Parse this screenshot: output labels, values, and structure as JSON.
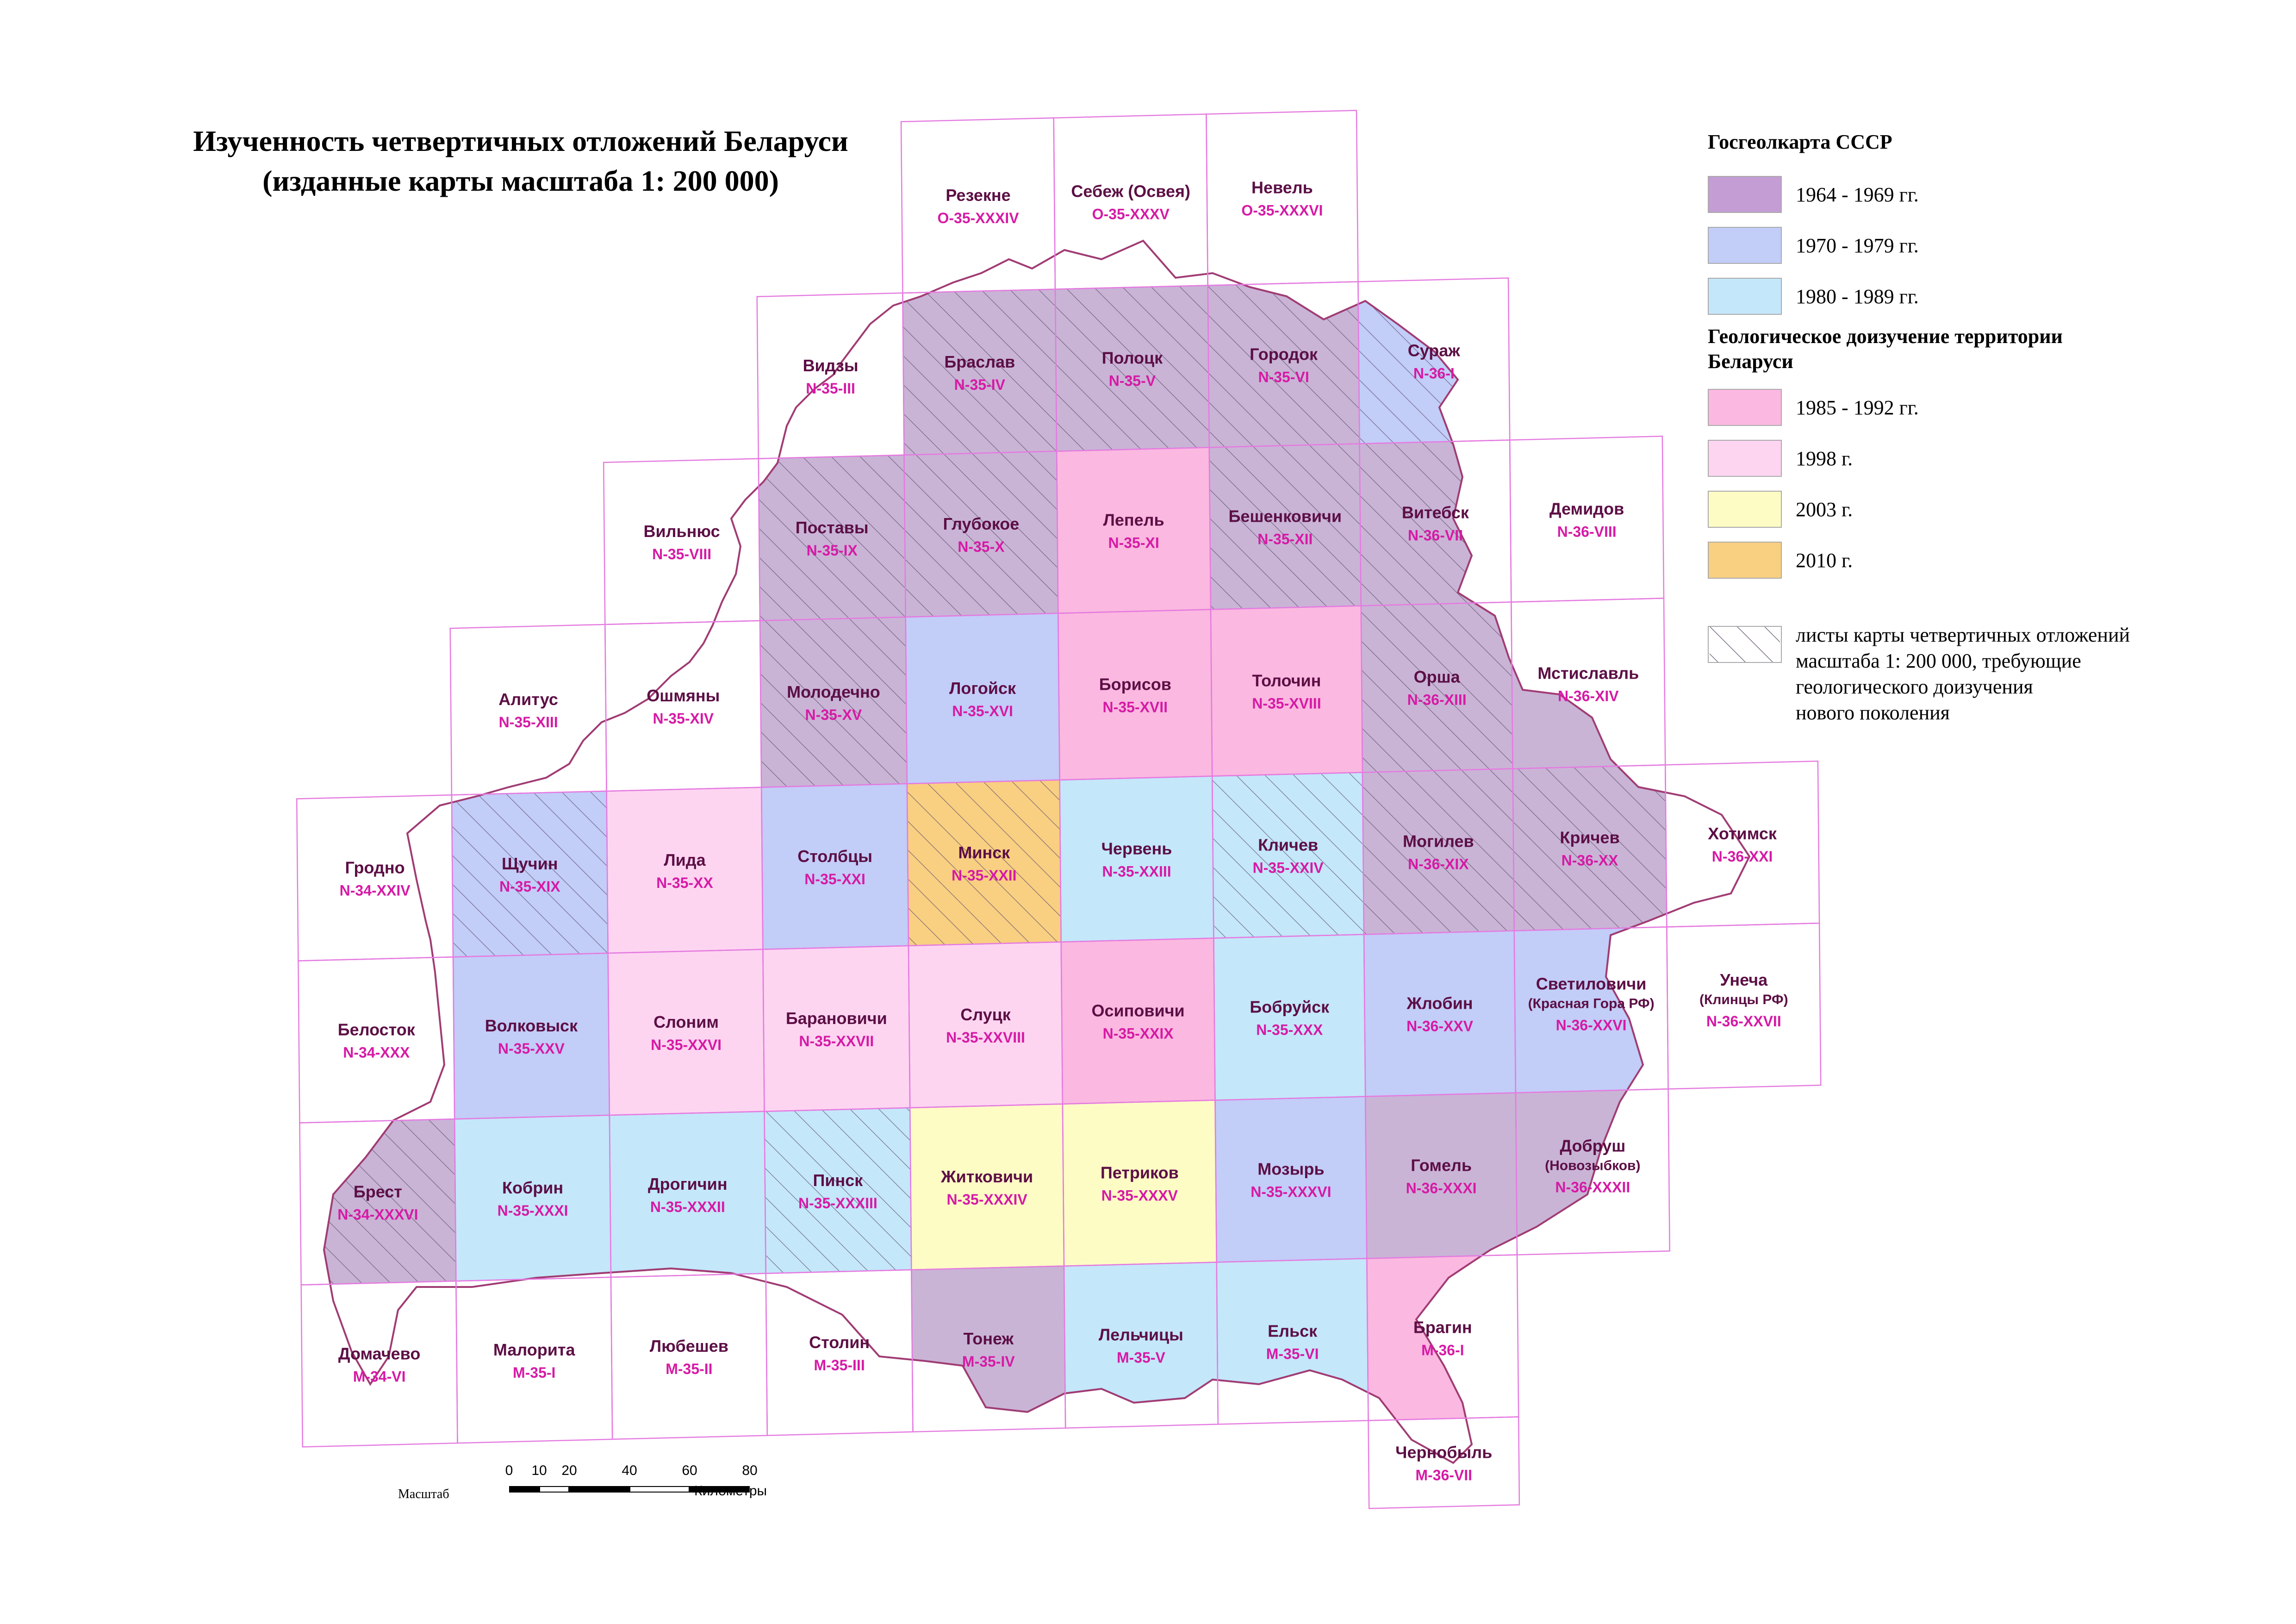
{
  "title": {
    "line1": "Изученность четвертичных отложений Беларуси",
    "line2": "(изданные карты масштаба 1: 200 000)"
  },
  "legend": {
    "group1_title": "Госгеолкарта СССР",
    "group1_items": [
      {
        "label": "1964 - 1969 гг.",
        "color": "#c49dd4"
      },
      {
        "label": "1970 - 1979 гг.",
        "color": "#c2cdf8"
      },
      {
        "label": "1980 - 1989 гг.",
        "color": "#c4e7fa"
      }
    ],
    "group2_title_l1": "Геологическое доизучение территории",
    "group2_title_l2": "Беларуси",
    "group2_items": [
      {
        "label": "1985 - 1992 гг.",
        "color": "#fbb8e0"
      },
      {
        "label": "1998 г.",
        "color": "#fdd5f1"
      },
      {
        "label": "2003 г.",
        "color": "#fdfcc5"
      },
      {
        "label": "2010 г.",
        "color": "#f9cf82"
      }
    ],
    "hatch_label_l1": "листы карты четвертичных отложений",
    "hatch_label_l2": "масштаба 1: 200 000, требующие",
    "hatch_label_l3": "геологического доизучения",
    "hatch_label_l4": "нового поколения"
  },
  "colors": {
    "p1964": "#c9b4d6",
    "p1970": "#c2cdf8",
    "p1980": "#c4e7fa",
    "p1985": "#fbb8e0",
    "p1998": "#fdd5f1",
    "p2003": "#fdfcc5",
    "p2010": "#f9cf82",
    "grid": "#e57be0",
    "name_text": "#5c0f45",
    "code_text": "#d61aa5"
  },
  "sheets": [
    {
      "name": "Резекне",
      "code": "O-35-XXXIV",
      "row": 0,
      "col": 4,
      "fill": "none",
      "hatch": false
    },
    {
      "name": "Себеж (Освея)",
      "code": "O-35-XXXV",
      "row": 0,
      "col": 5,
      "fill": "none",
      "hatch": false
    },
    {
      "name": "Невель",
      "code": "O-35-XXXVI",
      "row": 0,
      "col": 6,
      "fill": "none",
      "hatch": false
    },
    {
      "name": "Видзы",
      "code": "N-35-III",
      "row": 1,
      "col": 3,
      "fill": "none",
      "hatch": false
    },
    {
      "name": "Браслав",
      "code": "N-35-IV",
      "row": 1,
      "col": 4,
      "fill": "p1964",
      "hatch": true
    },
    {
      "name": "Полоцк",
      "code": "N-35-V",
      "row": 1,
      "col": 5,
      "fill": "p1964",
      "hatch": true
    },
    {
      "name": "Городок",
      "code": "N-35-VI",
      "row": 1,
      "col": 6,
      "fill": "p1964",
      "hatch": true
    },
    {
      "name": "Сураж",
      "code": "N-36-I",
      "row": 1,
      "col": 7,
      "fill": "p1970",
      "hatch": true
    },
    {
      "name": "Вильнюс",
      "code": "N-35-VIII",
      "row": 2,
      "col": 2,
      "fill": "none",
      "hatch": false
    },
    {
      "name": "Поставы",
      "code": "N-35-IX",
      "row": 2,
      "col": 3,
      "fill": "p1964",
      "hatch": true
    },
    {
      "name": "Глубокое",
      "code": "N-35-X",
      "row": 2,
      "col": 4,
      "fill": "p1964",
      "hatch": true
    },
    {
      "name": "Лепель",
      "code": "N-35-XI",
      "row": 2,
      "col": 5,
      "fill": "p1985",
      "hatch": false
    },
    {
      "name": "Бешенковичи",
      "code": "N-35-XII",
      "row": 2,
      "col": 6,
      "fill": "p1964",
      "hatch": true
    },
    {
      "name": "Витебск",
      "code": "N-36-VII",
      "row": 2,
      "col": 7,
      "fill": "p1964",
      "hatch": true
    },
    {
      "name": "Демидов",
      "code": "N-36-VIII",
      "row": 2,
      "col": 8,
      "fill": "none",
      "hatch": false
    },
    {
      "name": "Алитус",
      "code": "N-35-XIII",
      "row": 3,
      "col": 1,
      "fill": "none",
      "hatch": false
    },
    {
      "name": "Ошмяны",
      "code": "N-35-XIV",
      "row": 3,
      "col": 2,
      "fill": "none",
      "hatch": false
    },
    {
      "name": "Молодечно",
      "code": "N-35-XV",
      "row": 3,
      "col": 3,
      "fill": "p1964",
      "hatch": true
    },
    {
      "name": "Логойск",
      "code": "N-35-XVI",
      "row": 3,
      "col": 4,
      "fill": "p1970",
      "hatch": false
    },
    {
      "name": "Борисов",
      "code": "N-35-XVII",
      "row": 3,
      "col": 5,
      "fill": "p1985",
      "hatch": false
    },
    {
      "name": "Толочин",
      "code": "N-35-XVIII",
      "row": 3,
      "col": 6,
      "fill": "p1985",
      "hatch": false
    },
    {
      "name": "Орша",
      "code": "N-36-XIII",
      "row": 3,
      "col": 7,
      "fill": "p1964",
      "hatch": true
    },
    {
      "name": "Мстиславль",
      "code": "N-36-XIV",
      "row": 3,
      "col": 8,
      "fill": "p1964",
      "hatch": false
    },
    {
      "name": "Гродно",
      "code": "N-34-XXIV",
      "row": 4,
      "col": 0,
      "fill": "none",
      "hatch": false
    },
    {
      "name": "Щучин",
      "code": "N-35-XIX",
      "row": 4,
      "col": 1,
      "fill": "p1970",
      "hatch": true
    },
    {
      "name": "Лида",
      "code": "N-35-XX",
      "row": 4,
      "col": 2,
      "fill": "p1998",
      "hatch": false
    },
    {
      "name": "Столбцы",
      "code": "N-35-XXI",
      "row": 4,
      "col": 3,
      "fill": "p1970",
      "hatch": false
    },
    {
      "name": "Минск",
      "code": "N-35-XXII",
      "row": 4,
      "col": 4,
      "fill": "p2010",
      "hatch": true
    },
    {
      "name": "Червень",
      "code": "N-35-XXIII",
      "row": 4,
      "col": 5,
      "fill": "p1980",
      "hatch": false
    },
    {
      "name": "Кличев",
      "code": "N-35-XXIV",
      "row": 4,
      "col": 6,
      "fill": "p1980",
      "hatch": true
    },
    {
      "name": "Могилев",
      "code": "N-36-XIX",
      "row": 4,
      "col": 7,
      "fill": "p1964",
      "hatch": true
    },
    {
      "name": "Кричев",
      "code": "N-36-XX",
      "row": 4,
      "col": 8,
      "fill": "p1964",
      "hatch": true
    },
    {
      "name": "Хотимск",
      "code": "N-36-XXI",
      "row": 4,
      "col": 9,
      "fill": "none",
      "hatch": false
    },
    {
      "name": "Белосток",
      "code": "N-34-XXX",
      "row": 5,
      "col": 0,
      "fill": "none",
      "hatch": false
    },
    {
      "name": "Волковыск",
      "code": "N-35-XXV",
      "row": 5,
      "col": 1,
      "fill": "p1970",
      "hatch": false
    },
    {
      "name": "Слоним",
      "code": "N-35-XXVI",
      "row": 5,
      "col": 2,
      "fill": "p1998",
      "hatch": false
    },
    {
      "name": "Барановичи",
      "code": "N-35-XXVII",
      "row": 5,
      "col": 3,
      "fill": "p1998",
      "hatch": false
    },
    {
      "name": "Слуцк",
      "code": "N-35-XXVIII",
      "row": 5,
      "col": 4,
      "fill": "p1998",
      "hatch": false
    },
    {
      "name": "Осиповичи",
      "code": "N-35-XXIX",
      "row": 5,
      "col": 5,
      "fill": "p1985",
      "hatch": false
    },
    {
      "name": "Бобруйск",
      "code": "N-35-XXX",
      "row": 5,
      "col": 6,
      "fill": "p1980",
      "hatch": false
    },
    {
      "name": "Жлобин",
      "code": "N-36-XXV",
      "row": 5,
      "col": 7,
      "fill": "p1970",
      "hatch": false
    },
    {
      "name": "Светиловичи",
      "name2": "(Красная Гора РФ)",
      "code": "N-36-XXVI",
      "row": 5,
      "col": 8,
      "fill": "p1970",
      "hatch": false
    },
    {
      "name": "Унеча",
      "name2": "(Клинцы РФ)",
      "code": "N-36-XXVII",
      "row": 5,
      "col": 9,
      "fill": "none",
      "hatch": false
    },
    {
      "name": "Брест",
      "code": "N-34-XXXVI",
      "row": 6,
      "col": 0,
      "fill": "p1964",
      "hatch": true
    },
    {
      "name": "Кобрин",
      "code": "N-35-XXXI",
      "row": 6,
      "col": 1,
      "fill": "p1980",
      "hatch": false
    },
    {
      "name": "Дрогичин",
      "code": "N-35-XXXII",
      "row": 6,
      "col": 2,
      "fill": "p1980",
      "hatch": false
    },
    {
      "name": "Пинск",
      "code": "N-35-XXXIII",
      "row": 6,
      "col": 3,
      "fill": "p1980",
      "hatch": true
    },
    {
      "name": "Житковичи",
      "code": "N-35-XXXIV",
      "row": 6,
      "col": 4,
      "fill": "p2003",
      "hatch": false
    },
    {
      "name": "Петриков",
      "code": "N-35-XXXV",
      "row": 6,
      "col": 5,
      "fill": "p2003",
      "hatch": false
    },
    {
      "name": "Мозырь",
      "code": "N-35-XXXVI",
      "row": 6,
      "col": 6,
      "fill": "p1970",
      "hatch": false
    },
    {
      "name": "Гомель",
      "code": "N-36-XXXI",
      "row": 6,
      "col": 7,
      "fill": "p1964",
      "hatch": false
    },
    {
      "name": "Добруш",
      "name2": "(Новозыбков)",
      "code": "N-36-XXXII",
      "row": 6,
      "col": 8,
      "fill": "p1964",
      "hatch": false
    },
    {
      "name": "Домачево",
      "code": "M-34-VI",
      "row": 7,
      "col": 0,
      "fill": "none",
      "hatch": false
    },
    {
      "name": "Малорита",
      "code": "M-35-I",
      "row": 7,
      "col": 1,
      "fill": "none",
      "hatch": false
    },
    {
      "name": "Любешев",
      "code": "M-35-II",
      "row": 7,
      "col": 2,
      "fill": "none",
      "hatch": false
    },
    {
      "name": "Столин",
      "code": "M-35-III",
      "row": 7,
      "col": 3,
      "fill": "none",
      "hatch": false
    },
    {
      "name": "Тонеж",
      "code": "M-35-IV",
      "row": 7,
      "col": 4,
      "fill": "p1964",
      "hatch": false
    },
    {
      "name": "Лельчицы",
      "code": "M-35-V",
      "row": 7,
      "col": 5,
      "fill": "p1980",
      "hatch": false
    },
    {
      "name": "Ельск",
      "code": "M-35-VI",
      "row": 7,
      "col": 6,
      "fill": "p1980",
      "hatch": false
    },
    {
      "name": "Брагин",
      "code": "M-36-I",
      "row": 7,
      "col": 7,
      "fill": "p1985",
      "hatch": false
    },
    {
      "name": "Чернобыль",
      "code": "M-36-VII",
      "row": 8,
      "col": 7,
      "fill": "none",
      "hatch": false
    }
  ],
  "scale": {
    "label": "Масштаб",
    "unit": "Километры",
    "ticks": [
      "0",
      "10",
      "20",
      "40",
      "60",
      "80"
    ],
    "tick_km": [
      0,
      10,
      20,
      40,
      60,
      80
    ]
  }
}
